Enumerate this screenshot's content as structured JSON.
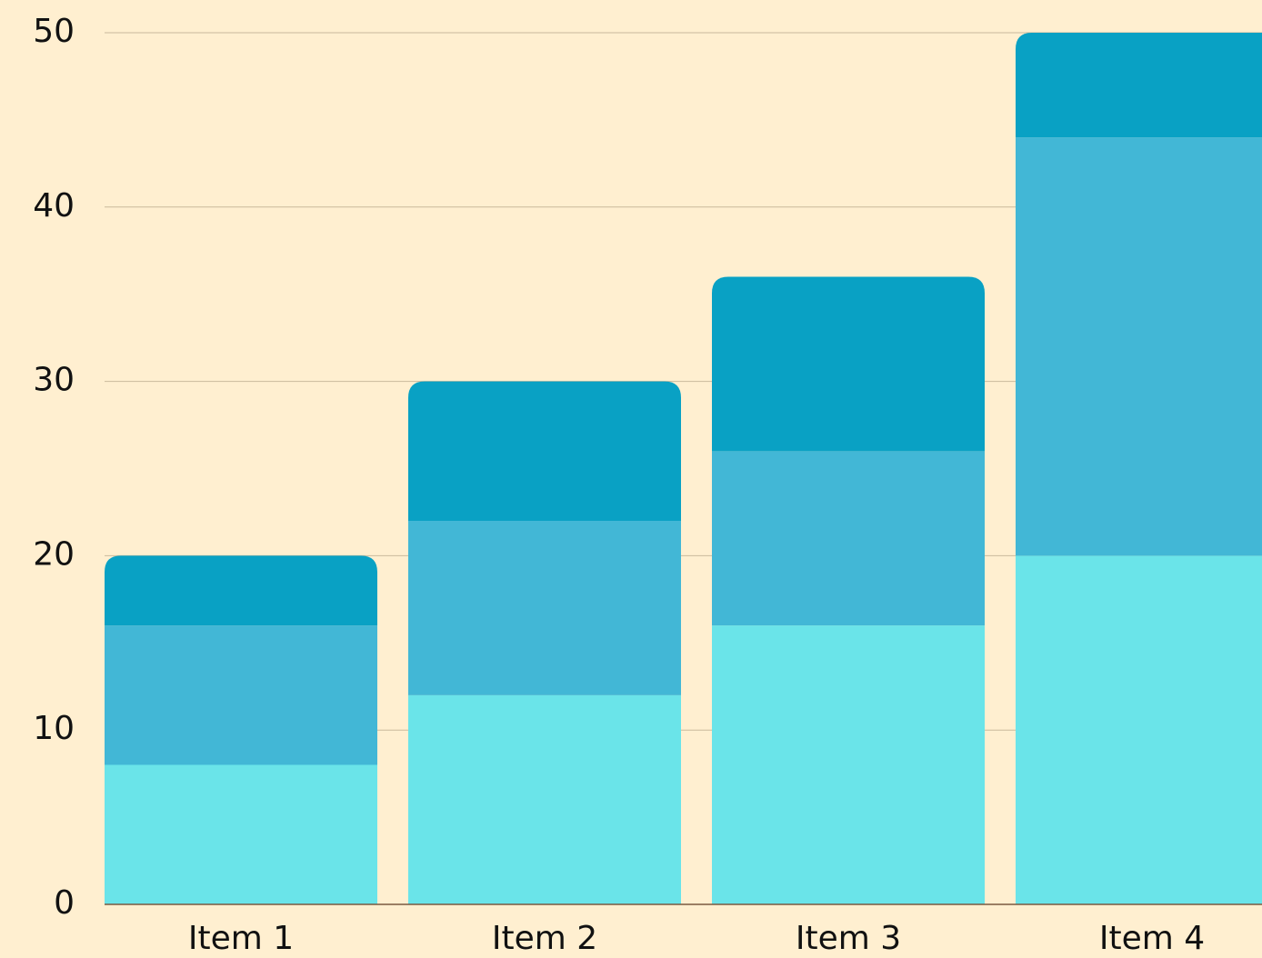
{
  "chart_data": {
    "type": "stacked_bar",
    "categories": [
      "Item 1",
      "Item 2",
      "Item 3",
      "Item 4"
    ],
    "series": [
      {
        "color": "#6ae4e9",
        "values": [
          8,
          12,
          16,
          20
        ]
      },
      {
        "color": "#42b7d6",
        "values": [
          8,
          10,
          10,
          24
        ]
      },
      {
        "color": "#09a1c4",
        "values": [
          4,
          8,
          10,
          6
        ]
      }
    ],
    "ylim": [
      0,
      50
    ],
    "yticks": [
      0,
      10,
      20,
      30,
      40,
      50
    ],
    "grid": true
  }
}
